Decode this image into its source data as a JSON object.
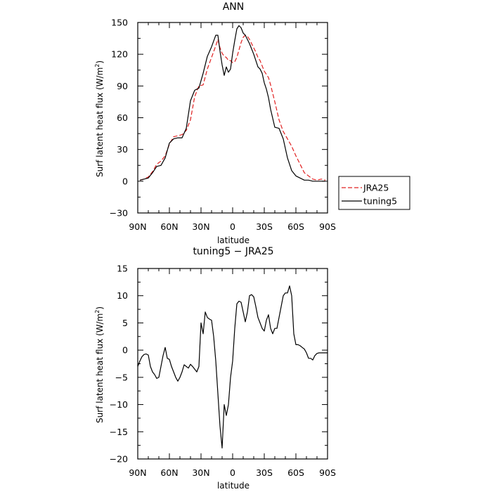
{
  "chart_data": [
    {
      "type": "line",
      "title": "ANN",
      "xlabel": "latitude",
      "ylabel": "Surf latent heat flux (W/m²)",
      "xlim": [
        90,
        -90
      ],
      "ylim": [
        -30,
        150
      ],
      "x_ticks": [
        90,
        60,
        30,
        0,
        -30,
        -60,
        -90
      ],
      "x_tick_labels": [
        "90N",
        "60N",
        "30N",
        "0",
        "30S",
        "60S",
        "90S"
      ],
      "y_ticks": [
        -30,
        0,
        30,
        60,
        90,
        120,
        150
      ],
      "y_tick_labels": [
        "−30",
        "0",
        "30",
        "60",
        "90",
        "120",
        "150"
      ],
      "legend_position": "right-outside",
      "series": [
        {
          "name": "JRA25",
          "color": "#e02020",
          "dash": "dashed",
          "x": [
            88,
            84,
            80,
            76,
            72,
            68,
            64,
            60,
            56,
            52,
            48,
            44,
            40,
            36,
            32,
            28,
            24,
            20,
            16,
            14,
            12,
            10,
            8,
            6,
            4,
            2,
            0,
            -2,
            -4,
            -6,
            -8,
            -10,
            -12,
            -14,
            -16,
            -18,
            -20,
            -22,
            -24,
            -26,
            -28,
            -30,
            -32,
            -34,
            -36,
            -40,
            -44,
            -48,
            -52,
            -56,
            -60,
            -64,
            -68,
            -72,
            -76,
            -80,
            -84,
            -88
          ],
          "y": [
            1,
            2,
            4,
            9,
            16,
            19,
            24,
            35,
            42,
            43,
            44,
            48,
            58,
            80,
            90,
            91,
            106,
            117,
            128,
            134,
            126,
            121,
            118,
            117,
            114,
            114,
            112,
            113,
            117,
            124,
            131,
            136,
            138,
            137,
            134,
            130,
            126,
            122,
            117,
            114,
            109,
            104,
            101,
            98,
            91,
            75,
            58,
            47,
            40,
            33,
            24,
            16,
            8,
            5,
            2,
            1,
            2,
            1
          ]
        },
        {
          "name": "tuning5",
          "color": "#000000",
          "dash": "solid",
          "x": [
            88,
            84,
            80,
            76,
            72,
            68,
            64,
            60,
            56,
            52,
            48,
            44,
            40,
            36,
            32,
            28,
            24,
            20,
            16,
            14,
            12,
            10,
            8,
            6,
            4,
            2,
            0,
            -2,
            -4,
            -6,
            -8,
            -10,
            -12,
            -14,
            -16,
            -18,
            -20,
            -22,
            -24,
            -26,
            -28,
            -30,
            -32,
            -34,
            -36,
            -40,
            -44,
            -48,
            -52,
            -56,
            -60,
            -64,
            -68,
            -72,
            -76,
            -80,
            -84,
            -88
          ],
          "y": [
            1,
            2,
            3,
            8,
            14,
            15,
            22,
            36,
            40,
            41,
            41,
            50,
            76,
            86,
            88,
            102,
            118,
            127,
            138,
            138,
            123,
            110,
            100,
            108,
            103,
            106,
            121,
            133,
            144,
            147,
            145,
            140,
            138,
            134,
            130,
            125,
            120,
            114,
            108,
            106,
            102,
            93,
            87,
            79,
            68,
            51,
            50,
            40,
            22,
            10,
            5,
            3,
            1,
            1,
            0,
            0,
            0,
            0
          ]
        }
      ]
    },
    {
      "type": "line",
      "title": "tuning5 − JRA25",
      "xlabel": "latitude",
      "ylabel": "Surf latent heat flux (W/m²)",
      "xlim": [
        90,
        -90
      ],
      "ylim": [
        -20,
        15
      ],
      "x_ticks": [
        90,
        60,
        30,
        0,
        -30,
        -60,
        -90
      ],
      "x_tick_labels": [
        "90N",
        "60N",
        "30N",
        "0",
        "30S",
        "60S",
        "90S"
      ],
      "y_ticks": [
        -20,
        -15,
        -10,
        -5,
        0,
        5,
        10,
        15
      ],
      "y_tick_labels": [
        "−20",
        "−15",
        "−10",
        "−5",
        "0",
        "5",
        "10",
        "15"
      ],
      "series": [
        {
          "name": "",
          "color": "#000000",
          "dash": "solid",
          "x": [
            90,
            88,
            86,
            84,
            82,
            80,
            78,
            76,
            74,
            72,
            70,
            68,
            66,
            64,
            62,
            60,
            58,
            56,
            54,
            52,
            50,
            48,
            46,
            44,
            42,
            40,
            38,
            36,
            34,
            32,
            30,
            28,
            26,
            24,
            22,
            20,
            18,
            16,
            14,
            12,
            10,
            8,
            6,
            4,
            2,
            0,
            -2,
            -4,
            -6,
            -8,
            -10,
            -12,
            -14,
            -16,
            -18,
            -20,
            -22,
            -24,
            -26,
            -28,
            -30,
            -32,
            -34,
            -36,
            -38,
            -40,
            -42,
            -44,
            -46,
            -48,
            -50,
            -52,
            -54,
            -56,
            -58,
            -60,
            -62,
            -64,
            -66,
            -68,
            -70,
            -72,
            -74,
            -76,
            -78,
            -80,
            -82,
            -84,
            -86,
            -88,
            -90
          ],
          "y": [
            -3,
            -2,
            -1.2,
            -0.8,
            -0.7,
            -0.9,
            -3,
            -4,
            -4.5,
            -5.2,
            -5,
            -3,
            -1,
            0.5,
            -1.5,
            -1.7,
            -3,
            -4,
            -5,
            -5.7,
            -5,
            -4,
            -2.7,
            -3,
            -3.3,
            -2.6,
            -3,
            -3.5,
            -4,
            -3,
            5,
            3,
            7,
            6,
            5.7,
            5.5,
            2.5,
            -2,
            -8,
            -14,
            -18,
            -10,
            -12,
            -10,
            -5,
            -2,
            4,
            8.5,
            9,
            8.8,
            7,
            5.2,
            7,
            10,
            10.2,
            9.8,
            8,
            6,
            5,
            4,
            3.5,
            5.5,
            6.5,
            4,
            3,
            4,
            4,
            6,
            8,
            10,
            10.5,
            10.5,
            11.8,
            10,
            3,
            1,
            1,
            0.8,
            0.5,
            0.2,
            -0.5,
            -1.5,
            -1.5,
            -1.8,
            -1,
            -0.6,
            -0.5,
            -0.5,
            -0.5,
            -0.5,
            -0.5
          ]
        }
      ]
    }
  ]
}
